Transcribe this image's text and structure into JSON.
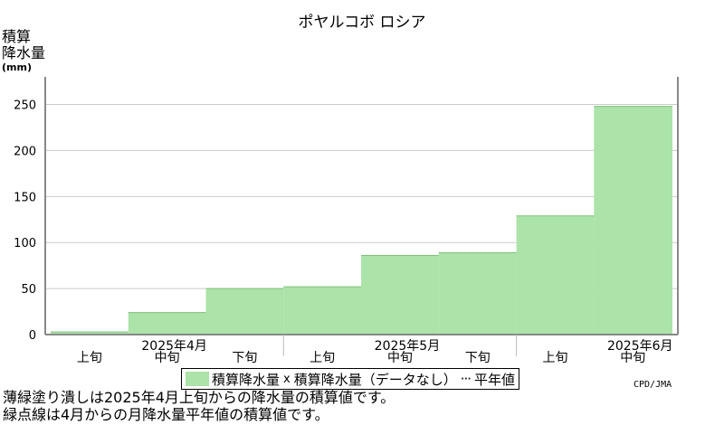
{
  "chart_data": {
    "type": "bar",
    "title": "ポヤルコボ ロシア",
    "ylabel": [
      "積算",
      "降水量",
      "(mm)"
    ],
    "ylim": [
      0,
      250
    ],
    "yticks": [
      0,
      50,
      100,
      150,
      200,
      250
    ],
    "grid": true,
    "categories": [
      {
        "dekad": "上旬",
        "month": ""
      },
      {
        "dekad": "中旬",
        "month": "2025年4月"
      },
      {
        "dekad": "下旬",
        "month": ""
      },
      {
        "dekad": "上旬",
        "month": ""
      },
      {
        "dekad": "中旬",
        "month": "2025年5月"
      },
      {
        "dekad": "下旬",
        "month": ""
      },
      {
        "dekad": "上旬",
        "month": ""
      },
      {
        "dekad": "中旬",
        "month": "2025年6月"
      }
    ],
    "series": [
      {
        "name": "積算降水量",
        "values": [
          3,
          24,
          50,
          52,
          86,
          89,
          129,
          248
        ]
      }
    ],
    "legend": {
      "fill_label": "積算降水量",
      "missing_mark": "x",
      "missing_label": "積算降水量（データなし）",
      "normal_label": "平年値",
      "placement": "bottom"
    },
    "colors": {
      "fill": "#abe3a8",
      "grid": "#cccccc",
      "axis": "#888888"
    }
  },
  "credit": "CPD/JMA",
  "notes": [
    "薄緑塗り潰しは2025年4月上旬からの降水量の積算値です。",
    "緑点線は4月からの月降水量平年値の積算値です。"
  ]
}
